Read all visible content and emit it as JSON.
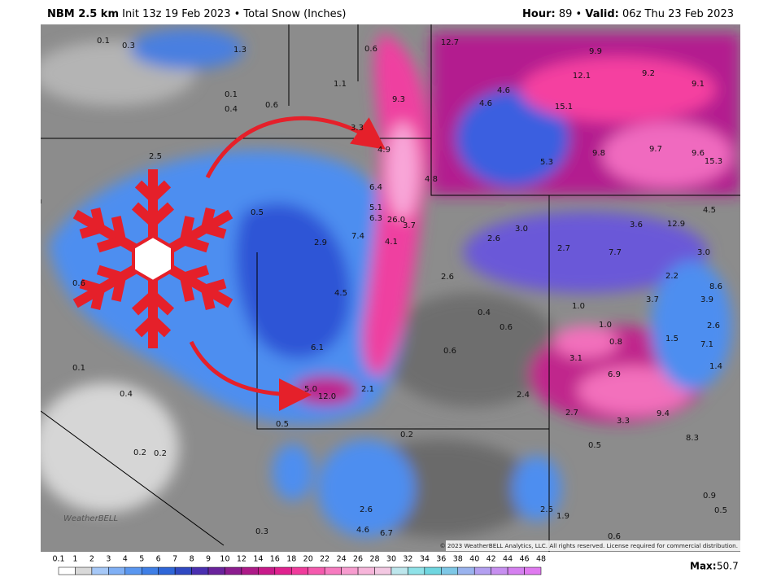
{
  "header": {
    "model": "NBM 2.5 km",
    "info": "Init 13z 19 Feb 2023 • Total Snow (Inches)",
    "hour_label": "Hour:",
    "hour": "89 •",
    "valid_label": "Valid:",
    "valid": "06z Thu 23 Feb 2023"
  },
  "map_labels": [
    "0.1",
    "0.3",
    "1.3",
    "0.6",
    "12.7",
    "9.9",
    "12.1",
    "9.2",
    "9.1",
    "1.1",
    "0.1",
    "0.4",
    "0.6",
    "9.3",
    "4.6",
    "4.6",
    "15.1",
    "3.3",
    "4.9",
    "9.8",
    "9.7",
    "9.6",
    "15.3",
    "2.5",
    "5.3",
    "4.8",
    "6.4",
    "0.5",
    "5.1",
    "6.3",
    "26.0",
    "3.7",
    "3.0",
    "3.6",
    "12.9",
    "4.5",
    "7.4",
    "4.1",
    "2.6",
    "2.9",
    "2.7",
    "7.7",
    "3.0",
    "2.2",
    "0.6",
    "2.6",
    "8.6",
    "4.5",
    "3.7",
    "3.9",
    "0.4",
    "1.0",
    "1.0",
    "0.6",
    "2.6",
    "0.8",
    "1.5",
    "7.1",
    "6.1",
    "0.6",
    "3.1",
    "1.4",
    "0.1",
    "6.9",
    "5.0",
    "12.0",
    "2.1",
    "0.4",
    "2.4",
    "2.7",
    "9.4",
    "3.3",
    "0.5",
    "0.2",
    "8.3",
    "0.5",
    "0.2",
    "0.2",
    "0.9",
    "0.5",
    "2.6",
    "2.5",
    "1.9",
    "4.6",
    "6.7",
    "0.3",
    "0.6"
  ],
  "logo": "WeatherBELL",
  "copyright": "© 2023 WeatherBELL Analytics, LLC. All rights reserved. License required for commercial distribution.",
  "colorbar": {
    "labels": [
      "0.1",
      "1",
      "2",
      "3",
      "4",
      "5",
      "6",
      "7",
      "8",
      "9",
      "10",
      "12",
      "14",
      "16",
      "18",
      "20",
      "22",
      "24",
      "26",
      "28",
      "30",
      "32",
      "34",
      "36",
      "38",
      "40",
      "42",
      "44",
      "46",
      "48"
    ]
  },
  "max": {
    "label": "Max:",
    "value": "50.7"
  }
}
